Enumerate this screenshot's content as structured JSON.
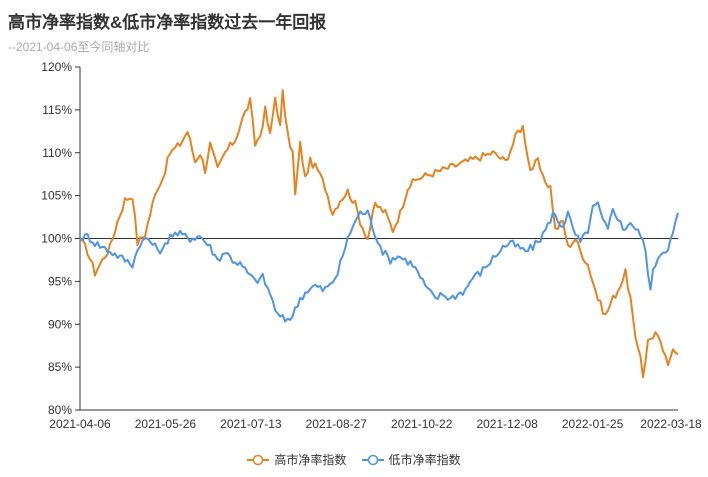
{
  "title": "高市净率指数&低市净率指数过去一年回报",
  "subtitle": "--2021-04-06至今同轴对比",
  "chart_data": {
    "type": "line",
    "title": "高市净率指数&低市净率指数过去一年回报",
    "subtitle": "--2021-04-06至今同轴对比",
    "xlabel": "",
    "ylabel": "",
    "x_tick_labels": [
      "2021-04-06",
      "2021-05-26",
      "2021-07-13",
      "2021-08-27",
      "2021-10-22",
      "2021-12-08",
      "2022-01-25",
      "2022-03-18"
    ],
    "y_tick_labels": [
      "80%",
      "85%",
      "90%",
      "95%",
      "100%",
      "105%",
      "110%",
      "115%",
      "120%"
    ],
    "ylim": [
      80,
      120
    ],
    "n_points": 240,
    "reference_line": 100,
    "grid": false,
    "legend": "bottom-center",
    "series": [
      {
        "name": "高市净率指数",
        "color": "#e8821e",
        "anchors": [
          [
            0,
            100
          ],
          [
            3,
            98.5
          ],
          [
            6,
            96
          ],
          [
            9,
            97.5
          ],
          [
            12,
            99
          ],
          [
            15,
            102
          ],
          [
            18,
            104.5
          ],
          [
            21,
            105
          ],
          [
            23,
            99.5
          ],
          [
            26,
            100.5
          ],
          [
            29,
            104
          ],
          [
            31,
            106
          ],
          [
            33,
            107
          ],
          [
            36,
            110
          ],
          [
            40,
            111
          ],
          [
            43,
            112.5
          ],
          [
            46,
            109
          ],
          [
            48,
            110
          ],
          [
            50,
            108
          ],
          [
            52,
            111
          ],
          [
            55,
            108
          ],
          [
            58,
            110
          ],
          [
            62,
            111.5
          ],
          [
            65,
            114
          ],
          [
            68,
            116
          ],
          [
            70,
            111
          ],
          [
            72,
            112
          ],
          [
            74,
            115
          ],
          [
            76,
            112
          ],
          [
            78,
            116.5
          ],
          [
            80,
            113
          ],
          [
            81,
            117
          ],
          [
            83,
            112
          ],
          [
            85,
            110
          ],
          [
            86,
            105
          ],
          [
            88,
            111
          ],
          [
            90,
            107
          ],
          [
            92,
            109
          ],
          [
            95,
            108
          ],
          [
            98,
            106
          ],
          [
            101,
            103
          ],
          [
            104,
            104.5
          ],
          [
            107,
            105.5
          ],
          [
            110,
            104
          ],
          [
            112,
            102
          ],
          [
            115,
            100
          ],
          [
            118,
            104
          ],
          [
            122,
            103
          ],
          [
            125,
            101
          ],
          [
            128,
            103
          ],
          [
            131,
            106
          ],
          [
            135,
            107
          ],
          [
            140,
            107.5
          ],
          [
            145,
            108
          ],
          [
            150,
            108.5
          ],
          [
            155,
            109
          ],
          [
            160,
            109.5
          ],
          [
            165,
            110
          ],
          [
            170,
            109
          ],
          [
            173,
            111
          ],
          [
            175,
            112.5
          ],
          [
            177,
            113
          ],
          [
            180,
            108
          ],
          [
            183,
            109
          ],
          [
            185,
            107
          ],
          [
            188,
            106
          ],
          [
            190,
            101
          ],
          [
            193,
            102
          ],
          [
            195,
            99
          ],
          [
            198,
            100
          ],
          [
            200,
            98.5
          ],
          [
            203,
            97
          ],
          [
            205,
            95
          ],
          [
            207,
            93
          ],
          [
            210,
            91
          ],
          [
            213,
            93
          ],
          [
            215,
            94
          ],
          [
            218,
            96
          ],
          [
            220,
            93
          ],
          [
            222,
            88
          ],
          [
            224,
            86.5
          ],
          [
            225,
            84
          ],
          [
            227,
            88
          ],
          [
            230,
            89
          ],
          [
            233,
            87
          ],
          [
            235,
            85
          ],
          [
            237,
            87.5
          ],
          [
            239,
            86.5
          ]
        ]
      },
      {
        "name": "低市净率指数",
        "color": "#4e95e8",
        "anchors": [
          [
            0,
            100
          ],
          [
            3,
            100.3
          ],
          [
            6,
            99.5
          ],
          [
            9,
            99
          ],
          [
            12,
            98.5
          ],
          [
            15,
            98
          ],
          [
            18,
            97.5
          ],
          [
            21,
            97
          ],
          [
            24,
            99.5
          ],
          [
            27,
            100
          ],
          [
            30,
            99
          ],
          [
            33,
            98.5
          ],
          [
            36,
            100.5
          ],
          [
            40,
            100.5
          ],
          [
            44,
            100
          ],
          [
            48,
            100.3
          ],
          [
            52,
            99
          ],
          [
            55,
            97.5
          ],
          [
            58,
            98.5
          ],
          [
            61,
            97.5
          ],
          [
            64,
            97
          ],
          [
            67,
            96
          ],
          [
            70,
            95
          ],
          [
            73,
            95.5
          ],
          [
            76,
            93.5
          ],
          [
            79,
            91
          ],
          [
            82,
            90.5
          ],
          [
            85,
            91
          ],
          [
            88,
            93
          ],
          [
            91,
            94
          ],
          [
            94,
            94.5
          ],
          [
            97,
            94
          ],
          [
            100,
            94.5
          ],
          [
            103,
            96
          ],
          [
            106,
            99
          ],
          [
            109,
            101.5
          ],
          [
            112,
            103
          ],
          [
            115,
            103
          ],
          [
            118,
            100.5
          ],
          [
            121,
            98.5
          ],
          [
            124,
            97.5
          ],
          [
            127,
            98
          ],
          [
            130,
            97.5
          ],
          [
            133,
            97
          ],
          [
            136,
            95.5
          ],
          [
            139,
            94
          ],
          [
            142,
            93
          ],
          [
            145,
            93.5
          ],
          [
            148,
            93
          ],
          [
            151,
            93.5
          ],
          [
            154,
            94
          ],
          [
            157,
            95.5
          ],
          [
            160,
            96
          ],
          [
            163,
            97
          ],
          [
            166,
            98
          ],
          [
            169,
            99
          ],
          [
            172,
            99.5
          ],
          [
            175,
            99
          ],
          [
            178,
            98.5
          ],
          [
            181,
            99
          ],
          [
            184,
            100
          ],
          [
            187,
            101.5
          ],
          [
            189,
            103
          ],
          [
            191,
            102
          ],
          [
            193,
            101.5
          ],
          [
            195,
            103
          ],
          [
            197,
            101
          ],
          [
            200,
            99.5
          ],
          [
            203,
            101
          ],
          [
            205,
            103.5
          ],
          [
            207,
            104
          ],
          [
            209,
            102
          ],
          [
            211,
            101
          ],
          [
            213,
            103.5
          ],
          [
            215,
            102.5
          ],
          [
            217,
            101
          ],
          [
            220,
            102
          ],
          [
            222,
            101
          ],
          [
            224,
            100.5
          ],
          [
            226,
            98.5
          ],
          [
            228,
            94
          ],
          [
            229,
            96
          ],
          [
            231,
            98
          ],
          [
            233,
            98.5
          ],
          [
            235,
            99
          ],
          [
            237,
            100.5
          ],
          [
            239,
            103
          ]
        ]
      }
    ]
  }
}
